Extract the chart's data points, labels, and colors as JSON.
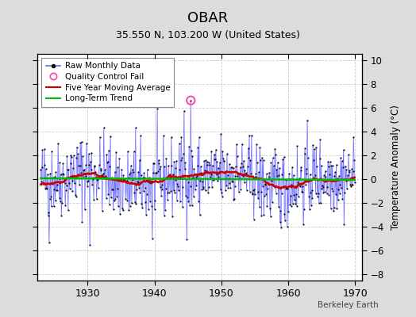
{
  "title": "OBAR",
  "subtitle": "35.550 N, 103.200 W (United States)",
  "ylabel": "Temperature Anomaly (°C)",
  "watermark": "Berkeley Earth",
  "xlim": [
    1922.5,
    1971.0
  ],
  "ylim": [
    -8.5,
    10.5
  ],
  "yticks": [
    -8,
    -6,
    -4,
    -2,
    0,
    2,
    4,
    6,
    8,
    10
  ],
  "xticks": [
    1930,
    1940,
    1950,
    1960,
    1970
  ],
  "bg_color": "#dcdcdc",
  "plot_bg_color": "#ffffff",
  "raw_line_color": "#6666ff",
  "raw_dot_color": "#111111",
  "qc_fail_color": "#ff44aa",
  "moving_avg_color": "#cc0000",
  "trend_color": "#00bb00",
  "seed": 42,
  "n_months": 564,
  "start_year": 1923,
  "start_month": 1,
  "qc_fail_index": 269
}
